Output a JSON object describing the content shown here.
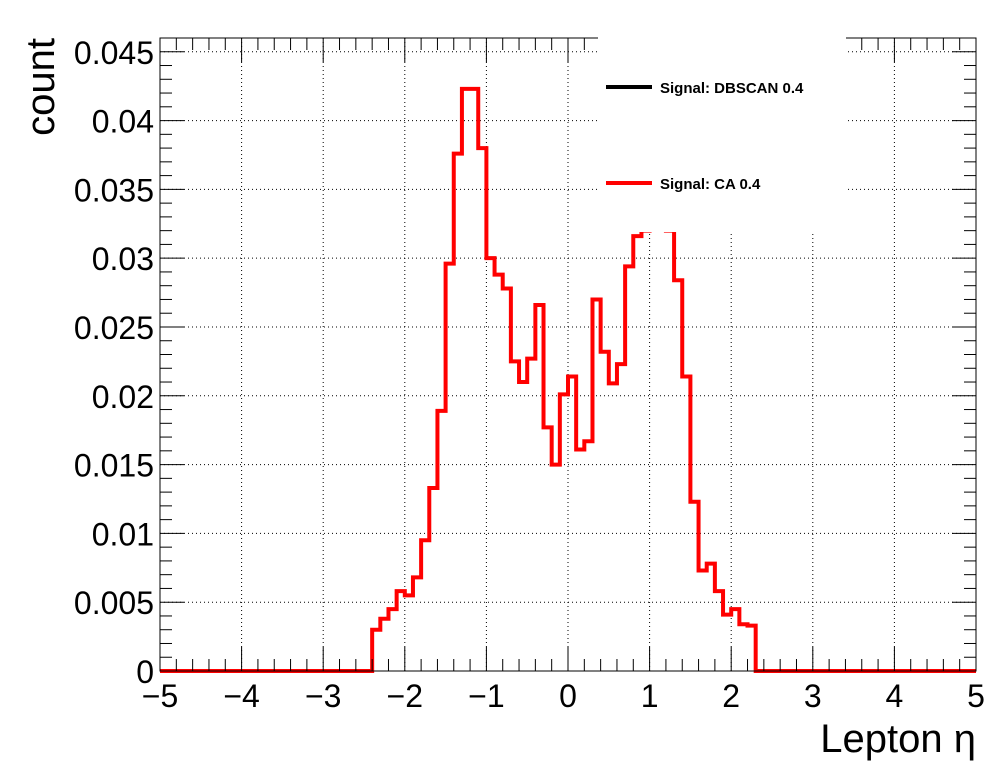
{
  "chart_data": {
    "type": "histogram",
    "xlabel": "Lepton η",
    "ylabel": "count",
    "xlim": [
      -5,
      5
    ],
    "ylim": [
      0,
      0.046
    ],
    "grid": true,
    "legend_placement": "top-right",
    "x_ticks": [
      "−5",
      "−4",
      "−3",
      "−2",
      "−1",
      "0",
      "1",
      "2",
      "3",
      "4",
      "5"
    ],
    "y_ticks": [
      "0",
      "0.005",
      "0.01",
      "0.015",
      "0.02",
      "0.025",
      "0.03",
      "0.035",
      "0.04",
      "0.045"
    ],
    "bin_edges_start": -2.4,
    "bin_width": 0.1,
    "series": [
      {
        "name": "Signal: DBSCAN 0.4",
        "color": "#000000",
        "values": []
      },
      {
        "name": "Signal: CA 0.4",
        "color": "#ff0000",
        "values": [
          0.003,
          0.0038,
          0.0045,
          0.0058,
          0.0055,
          0.0068,
          0.0095,
          0.0133,
          0.0189,
          0.0296,
          0.0376,
          0.0423,
          0.0423,
          0.038,
          0.03,
          0.0288,
          0.0278,
          0.0225,
          0.021,
          0.0227,
          0.0266,
          0.0177,
          0.015,
          0.0201,
          0.0214,
          0.0161,
          0.0167,
          0.027,
          0.0232,
          0.0209,
          0.0223,
          0.0294,
          0.0316,
          0.032,
          0.035,
          0.038,
          0.032,
          0.0284,
          0.0214,
          0.0123,
          0.0073,
          0.0078,
          0.0058,
          0.0041,
          0.0045,
          0.0034,
          0.0033,
          0.0
        ]
      }
    ]
  }
}
